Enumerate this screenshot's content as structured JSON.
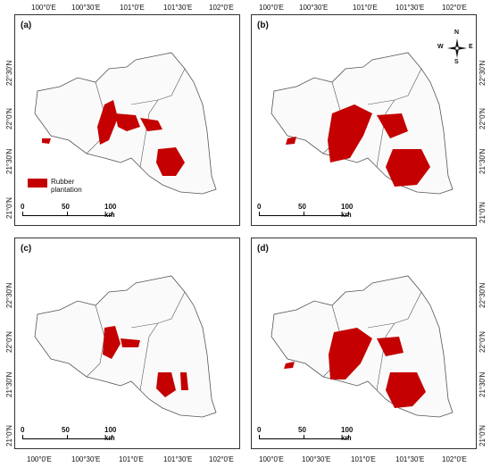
{
  "top_lon_labels": [
    "100°0'E",
    "100°30'E",
    "101°0'E",
    "101°30'E",
    "102°0'E"
  ],
  "bottom_lon_labels": [
    "100°0'E",
    "100°30'E",
    "101°0'E",
    "101°30'E",
    "102°0'E"
  ],
  "lat_labels": [
    "22°30'N",
    "22°0'N",
    "21°30'N",
    "21°0'N"
  ],
  "panels": [
    {
      "id": "a",
      "label": "(a)"
    },
    {
      "id": "b",
      "label": "(b)"
    },
    {
      "id": "c",
      "label": "(c)"
    },
    {
      "id": "d",
      "label": "(d)"
    }
  ],
  "legend": {
    "label": "Rubber plantation",
    "color": "#c40000"
  },
  "scale_bar": {
    "ticks": [
      "0",
      "50",
      "100 km"
    ]
  },
  "compass": {
    "n": "N",
    "s": "S",
    "e": "E",
    "w": "W"
  }
}
